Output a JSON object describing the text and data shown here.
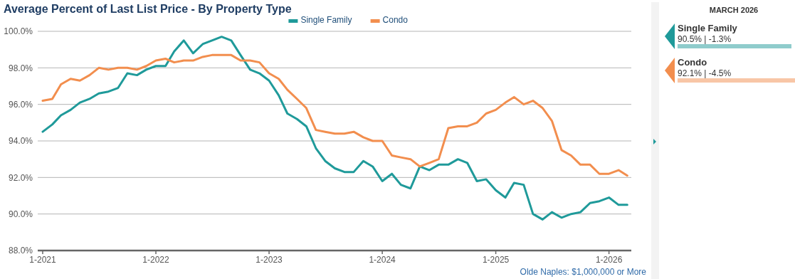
{
  "chart_data": [
    {
      "type": "line",
      "title": "Average Percent of Last List Price - By Property Type",
      "legend": "top",
      "grid": "y",
      "x": [
        "2021-01",
        "2021-02",
        "2021-03",
        "2021-04",
        "2021-05",
        "2021-06",
        "2021-07",
        "2021-08",
        "2021-09",
        "2021-10",
        "2021-11",
        "2021-12",
        "2022-01",
        "2022-02",
        "2022-03",
        "2022-04",
        "2022-05",
        "2022-06",
        "2022-07",
        "2022-08",
        "2022-09",
        "2022-10",
        "2022-11",
        "2022-12",
        "2023-01",
        "2023-02",
        "2023-03",
        "2023-04",
        "2023-05",
        "2023-06",
        "2023-07",
        "2023-08",
        "2023-09",
        "2023-10",
        "2023-11",
        "2023-12",
        "2024-01",
        "2024-02",
        "2024-03",
        "2024-04",
        "2024-05",
        "2024-06",
        "2024-07",
        "2024-08",
        "2024-09",
        "2024-10",
        "2024-11",
        "2024-12",
        "2025-01",
        "2025-02",
        "2025-03",
        "2025-04",
        "2025-05",
        "2025-06",
        "2025-07",
        "2025-08",
        "2025-09",
        "2025-10",
        "2025-11",
        "2025-12",
        "2026-01",
        "2026-02",
        "2026-03"
      ],
      "xlim": [
        "2020-12-16",
        "2026-03-14"
      ],
      "xticks": [
        {
          "value": "2021-01",
          "label": "1-2021"
        },
        {
          "value": "2022-01",
          "label": "1-2022"
        },
        {
          "value": "2023-01",
          "label": "1-2023"
        },
        {
          "value": "2024-01",
          "label": "1-2024"
        },
        {
          "value": "2025-01",
          "label": "1-2025"
        },
        {
          "value": "2026-01",
          "label": "1-2026"
        }
      ],
      "ylim": [
        88,
        100
      ],
      "yticks": [
        {
          "value": 88,
          "label": "88.0%"
        },
        {
          "value": 90,
          "label": "90.0%"
        },
        {
          "value": 92,
          "label": "92.0%"
        },
        {
          "value": 94,
          "label": "94.0%"
        },
        {
          "value": 96,
          "label": "96.0%"
        },
        {
          "value": 98,
          "label": "98.0%"
        },
        {
          "value": 100,
          "label": "100.0%"
        }
      ],
      "series": [
        {
          "name": "Single Family",
          "color": "#1f9a9a",
          "values": [
            94.5,
            94.9,
            95.4,
            95.7,
            96.1,
            96.3,
            96.6,
            96.7,
            96.9,
            97.7,
            97.6,
            97.9,
            98.1,
            98.1,
            98.9,
            99.5,
            98.8,
            99.3,
            99.5,
            99.7,
            99.5,
            98.7,
            97.9,
            97.7,
            97.3,
            96.5,
            95.5,
            95.2,
            94.8,
            93.6,
            92.9,
            92.5,
            92.3,
            92.3,
            92.9,
            92.6,
            91.8,
            92.2,
            91.6,
            91.4,
            92.6,
            92.4,
            92.7,
            92.7,
            93.0,
            92.8,
            91.8,
            91.9,
            91.3,
            90.9,
            91.7,
            91.6,
            90.0,
            89.7,
            90.1,
            89.8,
            90.0,
            90.1,
            90.6,
            90.7,
            90.9,
            90.5,
            90.5
          ]
        },
        {
          "name": "Condo",
          "color": "#f28e4e",
          "values": [
            96.2,
            96.3,
            97.1,
            97.4,
            97.3,
            97.6,
            98.0,
            97.9,
            98.0,
            98.0,
            97.9,
            98.1,
            98.4,
            98.5,
            98.3,
            98.4,
            98.4,
            98.6,
            98.7,
            98.7,
            98.7,
            98.4,
            98.4,
            98.3,
            97.7,
            97.4,
            96.8,
            96.3,
            95.8,
            94.6,
            94.5,
            94.4,
            94.4,
            94.5,
            94.2,
            94.0,
            94.0,
            93.2,
            93.1,
            93.0,
            92.6,
            92.8,
            93.0,
            94.7,
            94.8,
            94.8,
            95.0,
            95.5,
            95.7,
            96.1,
            96.4,
            96.0,
            96.2,
            95.8,
            95.1,
            93.5,
            93.2,
            92.7,
            92.7,
            92.2,
            92.2,
            92.4,
            92.1
          ]
        }
      ],
      "annotations": [
        "Olde Naples: $1,000,000 or More"
      ]
    },
    {
      "type": "other",
      "title": "MARCH 2026",
      "categories": [
        "Single Family",
        "Condo"
      ],
      "colors": [
        "#1f9a9a",
        "#f28e4e"
      ],
      "annotations": [
        "90.5% | -1.3%",
        "92.1% | -4.5%"
      ]
    }
  ]
}
